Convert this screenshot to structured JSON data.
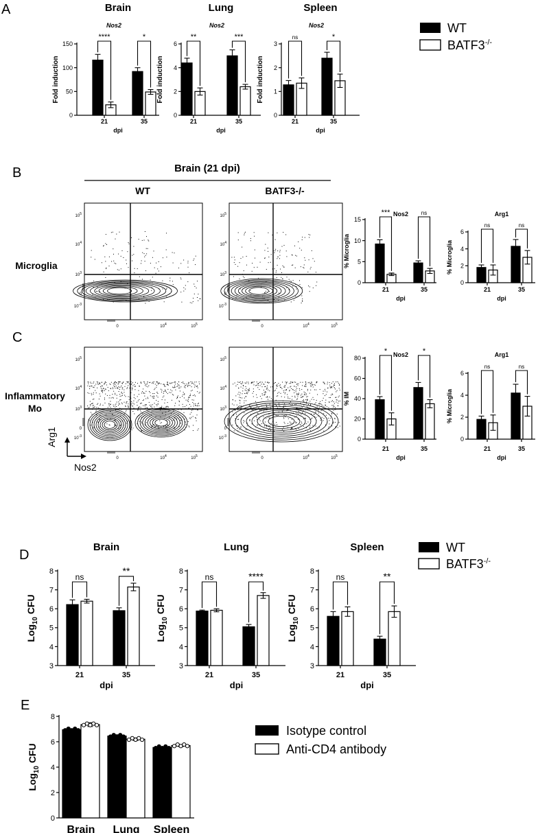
{
  "panels": {
    "A": "A",
    "B": "B",
    "C": "C",
    "D": "D",
    "E": "E"
  },
  "legend_main": {
    "wt": "WT",
    "ko_base": "BATF3",
    "ko_sup": "-/-"
  },
  "legend_e": {
    "isotype": "Isotype control",
    "anti_cd4": "Anti-CD4 antibody"
  },
  "flow": {
    "header": "Brain (21 dpi)",
    "col_wt": "WT",
    "col_ko": "BATF3-/-",
    "row_microglia": "Microglia",
    "row_im_1": "Inflammatory",
    "row_im_2": "Mo",
    "axis_y": "Arg1",
    "axis_x": "Nos2",
    "tick_labels": {
      "t5": "5",
      "t4": "4",
      "t3": "3",
      "t0": "0",
      "tneg3": "-3",
      "base": "10"
    }
  },
  "chart_data": [
    {
      "id": "A-brain",
      "type": "bar",
      "title": "Brain",
      "subtitle": "Nos2",
      "xlabel": "dpi",
      "ylabel": "Fold induction",
      "ylim": [
        0,
        150
      ],
      "yticks": [
        0,
        50,
        100,
        150
      ],
      "categories": [
        "21",
        "35"
      ],
      "series": [
        {
          "name": "WT",
          "values": [
            116,
            92
          ],
          "errors": [
            12,
            8
          ]
        },
        {
          "name": "BATF3-/-",
          "values": [
            22,
            49
          ],
          "errors": [
            6,
            5
          ]
        }
      ],
      "significance": [
        "****",
        "*"
      ]
    },
    {
      "id": "A-lung",
      "type": "bar",
      "title": "Lung",
      "subtitle": "Nos2",
      "xlabel": "dpi",
      "ylabel": "Fold induction",
      "ylim": [
        0,
        6
      ],
      "yticks": [
        0,
        2,
        4,
        6
      ],
      "categories": [
        "21",
        "35"
      ],
      "series": [
        {
          "name": "WT",
          "values": [
            4.4,
            5.0
          ],
          "errors": [
            0.4,
            0.5
          ]
        },
        {
          "name": "BATF3-/-",
          "values": [
            2.0,
            2.4
          ],
          "errors": [
            0.3,
            0.2
          ]
        }
      ],
      "significance": [
        "**",
        "***"
      ]
    },
    {
      "id": "A-spleen",
      "type": "bar",
      "title": "Spleen",
      "subtitle": "Nos2",
      "xlabel": "dpi",
      "ylabel": "Fold induction",
      "ylim": [
        0,
        3
      ],
      "yticks": [
        0,
        1,
        2,
        3
      ],
      "categories": [
        "21",
        "35"
      ],
      "series": [
        {
          "name": "WT",
          "values": [
            1.28,
            2.4
          ],
          "errors": [
            0.18,
            0.25
          ]
        },
        {
          "name": "BATF3-/-",
          "values": [
            1.35,
            1.45
          ],
          "errors": [
            0.22,
            0.28
          ]
        }
      ],
      "significance": [
        "ns",
        "*"
      ]
    },
    {
      "id": "B-nos2",
      "type": "bar",
      "title": "Nos2",
      "xlabel": "dpi",
      "ylabel": "% Microglia",
      "ylim": [
        0,
        15
      ],
      "yticks": [
        0,
        5,
        10,
        15
      ],
      "categories": [
        "21",
        "35"
      ],
      "series": [
        {
          "name": "WT",
          "values": [
            9.2,
            4.7
          ],
          "errors": [
            1.0,
            0.5
          ]
        },
        {
          "name": "BATF3-/-",
          "values": [
            2.0,
            2.8
          ],
          "errors": [
            0.3,
            0.6
          ]
        }
      ],
      "significance": [
        "***",
        "ns"
      ]
    },
    {
      "id": "B-arg1",
      "type": "bar",
      "title": "Arg1",
      "xlabel": "dpi",
      "ylabel": "% Microglia",
      "ylim": [
        0,
        6
      ],
      "yticks": [
        0,
        2,
        4,
        6
      ],
      "categories": [
        "21",
        "35"
      ],
      "series": [
        {
          "name": "WT",
          "values": [
            1.8,
            4.3
          ],
          "errors": [
            0.3,
            0.8
          ]
        },
        {
          "name": "BATF3-/-",
          "values": [
            1.5,
            3.0
          ],
          "errors": [
            0.6,
            0.8
          ]
        }
      ],
      "significance": [
        "ns",
        "ns"
      ]
    },
    {
      "id": "C-nos2",
      "type": "bar",
      "title": "Nos2",
      "xlabel": "dpi",
      "ylabel": "% IM",
      "ylim": [
        0,
        80
      ],
      "yticks": [
        0,
        20,
        40,
        60,
        80
      ],
      "categories": [
        "21",
        "35"
      ],
      "series": [
        {
          "name": "WT",
          "values": [
            39,
            51
          ],
          "errors": [
            3,
            5
          ]
        },
        {
          "name": "BATF3-/-",
          "values": [
            20,
            35
          ],
          "errors": [
            6,
            4
          ]
        }
      ],
      "significance": [
        "*",
        "*"
      ]
    },
    {
      "id": "C-arg1",
      "type": "bar",
      "title": "Arg1",
      "xlabel": "dpi",
      "ylabel": "% Microglia",
      "ylim": [
        0,
        6
      ],
      "yticks": [
        0,
        2,
        4,
        6
      ],
      "categories": [
        "21",
        "35"
      ],
      "series": [
        {
          "name": "WT",
          "values": [
            1.8,
            4.2
          ],
          "errors": [
            0.3,
            0.8
          ]
        },
        {
          "name": "BATF3-/-",
          "values": [
            1.5,
            3.0
          ],
          "errors": [
            0.7,
            0.9
          ]
        }
      ],
      "significance": [
        "ns",
        "ns"
      ]
    },
    {
      "id": "D-brain",
      "type": "bar",
      "title": "Brain",
      "xlabel": "dpi",
      "ylabel": "Log10 CFU",
      "ylim": [
        3,
        8
      ],
      "yticks": [
        3,
        4,
        5,
        6,
        7,
        8
      ],
      "categories": [
        "21",
        "35"
      ],
      "series": [
        {
          "name": "WT",
          "values": [
            6.22,
            5.9
          ],
          "errors": [
            0.25,
            0.15
          ]
        },
        {
          "name": "BATF3-/-",
          "values": [
            6.4,
            7.15
          ],
          "errors": [
            0.1,
            0.2
          ]
        }
      ],
      "significance": [
        "ns",
        "**"
      ]
    },
    {
      "id": "D-lung",
      "type": "bar",
      "title": "Lung",
      "xlabel": "dpi",
      "ylabel": "Log10 CFU",
      "ylim": [
        3,
        8
      ],
      "yticks": [
        3,
        4,
        5,
        6,
        7,
        8
      ],
      "categories": [
        "21",
        "35"
      ],
      "series": [
        {
          "name": "WT",
          "values": [
            5.88,
            5.05
          ],
          "errors": [
            0.05,
            0.12
          ]
        },
        {
          "name": "BATF3-/-",
          "values": [
            5.92,
            6.7
          ],
          "errors": [
            0.08,
            0.15
          ]
        }
      ],
      "significance": [
        "ns",
        "****"
      ]
    },
    {
      "id": "D-spleen",
      "type": "bar",
      "title": "Spleen",
      "xlabel": "dpi",
      "ylabel": "Log10 CFU",
      "ylim": [
        3,
        8
      ],
      "yticks": [
        3,
        4,
        5,
        6,
        7,
        8
      ],
      "categories": [
        "21",
        "35"
      ],
      "series": [
        {
          "name": "WT",
          "values": [
            5.6,
            4.4
          ],
          "errors": [
            0.25,
            0.15
          ]
        },
        {
          "name": "BATF3-/-",
          "values": [
            5.85,
            5.85
          ],
          "errors": [
            0.25,
            0.3
          ]
        }
      ],
      "significance": [
        "ns",
        "**"
      ]
    },
    {
      "id": "E",
      "type": "bar",
      "xlabel": "",
      "ylabel": "Log10 CFU",
      "ylim": [
        0,
        8
      ],
      "yticks": [
        0,
        2,
        4,
        6,
        8
      ],
      "categories": [
        "Brain",
        "Lung",
        "Spleen"
      ],
      "series": [
        {
          "name": "Isotype control",
          "values": [
            6.95,
            6.45,
            5.55
          ],
          "errors": [
            0.05,
            0.1,
            0.05
          ]
        },
        {
          "name": "Anti-CD4 antibody",
          "values": [
            7.35,
            6.2,
            5.7
          ],
          "errors": [
            0.15,
            0.1,
            0.08
          ]
        }
      ]
    }
  ]
}
